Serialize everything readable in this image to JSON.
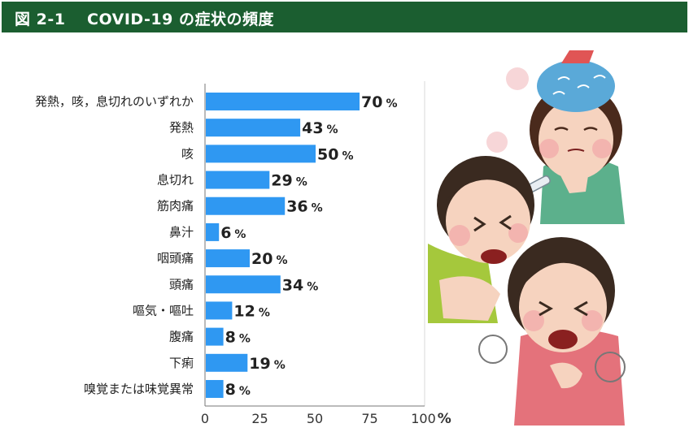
{
  "header": {
    "title": "図 2-1　 COVID-19 の症状の頻度"
  },
  "illustration": {
    "description_icon": "sick-people-illustration"
  },
  "colors": {
    "bar": "#2f98f2",
    "header_bg": "#1b5e30",
    "header_text": "#ffffff"
  },
  "chart_data": {
    "type": "bar",
    "orientation": "horizontal",
    "title": "",
    "xlabel": "",
    "ylabel": "",
    "categories": [
      "発熱，咳，息切れのいずれか",
      "発熱",
      "咳",
      "息切れ",
      "筋肉痛",
      "鼻汁",
      "咽頭痛",
      "頭痛",
      "嘔気・嘔吐",
      "腹痛",
      "下痢",
      "嗅覚または味覚異常"
    ],
    "values": [
      70,
      43,
      50,
      29,
      36,
      6,
      20,
      34,
      12,
      8,
      19,
      8
    ],
    "value_unit": "%",
    "xlim": [
      0,
      100
    ],
    "xticks": [
      0,
      25,
      50,
      75,
      100
    ],
    "xtick_unit": "%",
    "gridlines": [
      100
    ]
  }
}
